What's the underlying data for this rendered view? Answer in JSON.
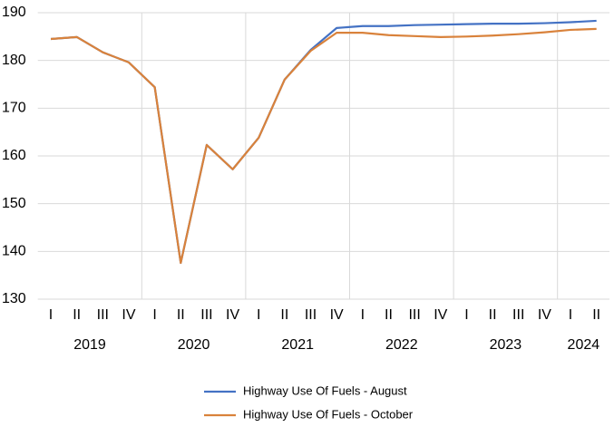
{
  "chart_data": {
    "type": "line",
    "categories": [
      "I",
      "II",
      "III",
      "IV",
      "I",
      "II",
      "III",
      "IV",
      "I",
      "II",
      "III",
      "IV",
      "I",
      "II",
      "III",
      "IV",
      "I",
      "II",
      "III",
      "IV",
      "I",
      "II"
    ],
    "year_labels": [
      "2019",
      "2020",
      "2021",
      "2022",
      "2023",
      "2024"
    ],
    "series": [
      {
        "name": "Highway Use Of Fuels - August",
        "color": "#4472c4",
        "values": [
          184.5,
          184.9,
          181.7,
          179.6,
          174.4,
          137.6,
          162.3,
          157.2,
          163.8,
          176.0,
          182.2,
          186.8,
          187.2,
          187.2,
          187.4,
          187.5,
          187.6,
          187.7,
          187.7,
          187.8,
          188.0,
          188.3
        ]
      },
      {
        "name": "Highway Use Of Fuels - October",
        "color": "#d9823b",
        "values": [
          184.5,
          184.9,
          181.7,
          179.6,
          174.4,
          137.6,
          162.3,
          157.2,
          163.8,
          176.0,
          182.0,
          185.8,
          185.8,
          185.3,
          185.1,
          184.9,
          185.0,
          185.2,
          185.5,
          185.9,
          186.4,
          186.6
        ]
      }
    ],
    "ylim": [
      130,
      190
    ],
    "yticks": [
      130,
      140,
      150,
      160,
      170,
      180,
      190
    ],
    "grid": true
  }
}
